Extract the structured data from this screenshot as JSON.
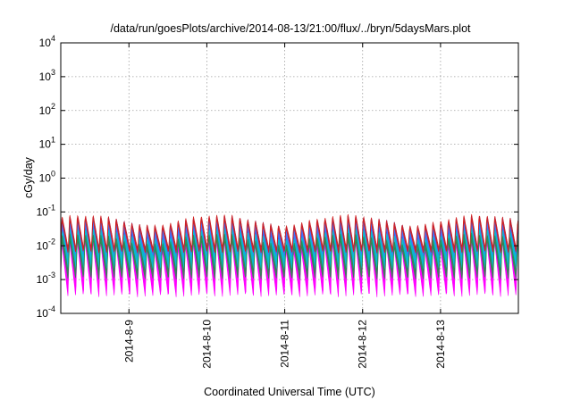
{
  "chart_data": {
    "type": "area",
    "title": "/data/run/goesPlots/archive/2014-08-13/21:00/flux/../bryn/5daysMars.plot",
    "xlabel": "Coordinated Universal Time (UTC)",
    "ylabel": "cGy/day",
    "yscale": "log",
    "ylim": [
      0.0001,
      10000
    ],
    "xlim": [
      "2014-08-08 03:00",
      "2014-08-13 23:59"
    ],
    "grid": true,
    "legend": "none",
    "y_ticks": [
      {
        "base": "10",
        "exp": "-4"
      },
      {
        "base": "10",
        "exp": "-3"
      },
      {
        "base": "10",
        "exp": "-2"
      },
      {
        "base": "10",
        "exp": "-1"
      },
      {
        "base": "10",
        "exp": "0"
      },
      {
        "base": "10",
        "exp": "1"
      },
      {
        "base": "10",
        "exp": "2"
      },
      {
        "base": "10",
        "exp": "3"
      },
      {
        "base": "10",
        "exp": "4"
      }
    ],
    "x_ticks": [
      "2014-8-9",
      "2014-8-10",
      "2014-8-11",
      "2014-8-12",
      "2014-8-13"
    ],
    "oscillation_period_hours": 2.38,
    "series": [
      {
        "color": "#ff00ff",
        "upper_peak": 0.025,
        "upper_trough": 0.0025,
        "lower_peak": 0.012,
        "lower_trough": 0.0003
      },
      {
        "color": "#1e5aff",
        "upper_peak": 0.06,
        "upper_trough": 0.007,
        "lower_peak": 0.028,
        "lower_trough": 0.0018
      },
      {
        "color": "#00c8c8",
        "upper_peak": 0.025,
        "upper_trough": 0.004,
        "lower_peak": 0.018,
        "lower_trough": 0.002
      },
      {
        "color": "#d21e1e",
        "upper_peak": 0.065,
        "upper_trough": 0.0075,
        "lower_peak": 0.055,
        "lower_trough": 0.006
      },
      {
        "color": "#2a8a4a",
        "upper_peak": 0.018,
        "upper_trough": 0.0015,
        "lower_peak": 0.014,
        "lower_trough": 0.001
      }
    ]
  }
}
